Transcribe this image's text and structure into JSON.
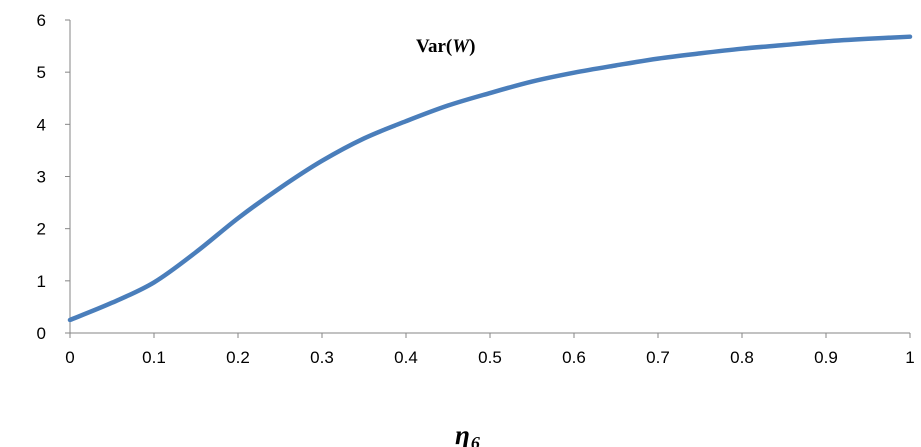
{
  "chart_data": {
    "type": "line",
    "title": "",
    "xlabel": "η",
    "xlabel_subscript": "6",
    "ylabel": "",
    "xlim": [
      0,
      1
    ],
    "ylim": [
      0,
      6
    ],
    "x_ticks": [
      0,
      0.1,
      0.2,
      0.3,
      0.4,
      0.5,
      0.6,
      0.7,
      0.8,
      0.9,
      1
    ],
    "x_tick_labels": [
      "0",
      "0.1",
      "0.2",
      "0.3",
      "0.4",
      "0.5",
      "0.6",
      "0.7",
      "0.8",
      "0.9",
      "1"
    ],
    "y_ticks": [
      0,
      1,
      2,
      3,
      4,
      5,
      6
    ],
    "y_tick_labels": [
      "0",
      "1",
      "2",
      "3",
      "4",
      "5",
      "6"
    ],
    "grid": false,
    "series": [
      {
        "name": "Var(W)",
        "name_prefix": "Var(",
        "name_var": "W",
        "name_suffix": ")",
        "color": "#4A7EBB",
        "x": [
          0,
          0.05,
          0.1,
          0.15,
          0.2,
          0.25,
          0.3,
          0.35,
          0.4,
          0.45,
          0.5,
          0.55,
          0.6,
          0.65,
          0.7,
          0.75,
          0.8,
          0.85,
          0.9,
          0.95,
          1.0
        ],
        "values": [
          0.25,
          0.58,
          0.97,
          1.55,
          2.2,
          2.78,
          3.3,
          3.73,
          4.06,
          4.36,
          4.6,
          4.82,
          4.99,
          5.13,
          5.26,
          5.36,
          5.45,
          5.52,
          5.59,
          5.64,
          5.68
        ]
      }
    ]
  }
}
